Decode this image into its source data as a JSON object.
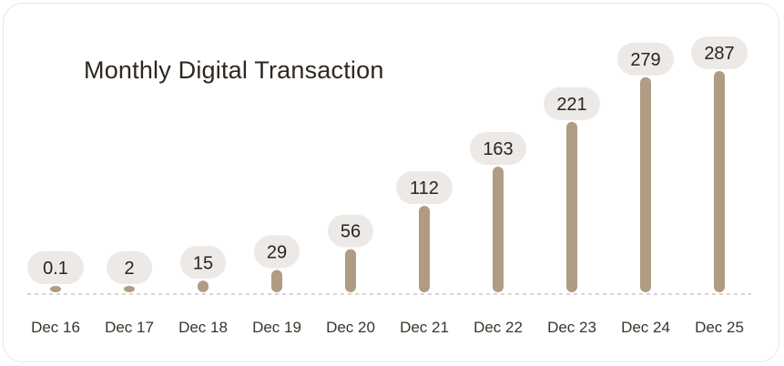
{
  "colors": {
    "bar": "#b09c82",
    "bubble": "#ece9e7",
    "baseline": "#cdc6bc",
    "text": "#2a241e",
    "card_border": "#ece7dd"
  },
  "chart_data": {
    "type": "bar",
    "title": "Monthly Digital Transaction",
    "categories": [
      "Dec 16",
      "Dec 17",
      "Dec 18",
      "Dec 19",
      "Dec 20",
      "Dec 21",
      "Dec 22",
      "Dec 23",
      "Dec 24",
      "Dec 25"
    ],
    "values": [
      0.1,
      2,
      15,
      29,
      56,
      112,
      163,
      221,
      279,
      287
    ],
    "value_labels": [
      "0.1",
      "2",
      "15",
      "29",
      "56",
      "112",
      "163",
      "221",
      "279",
      "287"
    ],
    "ylim": [
      0,
      287
    ],
    "grid": false,
    "legend": "none",
    "baseline_style": "dashed"
  }
}
